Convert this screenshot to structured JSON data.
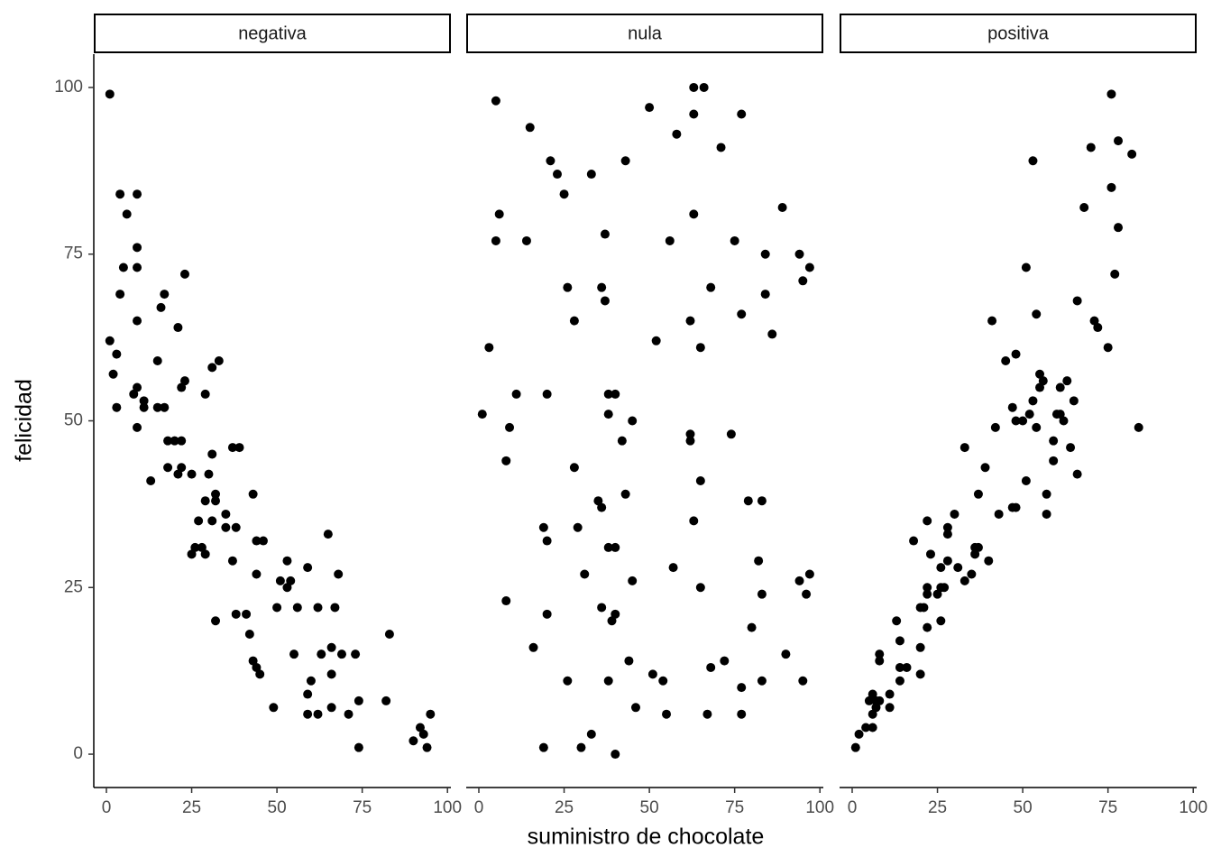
{
  "chart_data": {
    "type": "scatter",
    "xlabel": "suministro de chocolate",
    "ylabel": "felicidad",
    "xlim": [
      -3.7,
      101
    ],
    "ylim": [
      -5,
      105
    ],
    "xticks": [
      0,
      25,
      50,
      75,
      100
    ],
    "yticks": [
      0,
      25,
      50,
      75,
      100
    ],
    "series": [
      {
        "name": "negativa",
        "color": "#000000",
        "x": [
          1,
          1,
          2,
          3,
          3,
          4,
          6,
          5,
          4,
          9,
          9,
          9,
          9,
          9,
          8,
          9,
          11,
          11,
          13,
          15,
          16,
          17,
          15,
          17,
          18,
          18,
          20,
          22,
          21,
          23,
          23,
          22,
          21,
          22,
          25,
          29,
          30,
          31,
          33,
          31,
          32,
          32,
          29,
          27,
          31,
          35,
          35,
          38,
          37,
          39,
          26,
          28,
          25,
          29,
          37,
          43,
          44,
          46,
          44,
          32,
          38,
          41,
          42,
          43,
          44,
          45,
          49,
          51,
          53,
          54,
          53,
          50,
          56,
          55,
          59,
          65,
          62,
          67,
          68,
          63,
          66,
          69,
          73,
          66,
          60,
          59,
          59,
          62,
          66,
          71,
          74,
          74,
          82,
          83,
          92,
          93,
          90,
          94,
          95
        ],
        "values": [
          99,
          62,
          57,
          60,
          52,
          84,
          81,
          73,
          69,
          84,
          76,
          73,
          65,
          55,
          54,
          49,
          53,
          52,
          41,
          59,
          67,
          69,
          52,
          52,
          47,
          43,
          47,
          47,
          64,
          72,
          56,
          55,
          42,
          43,
          42,
          54,
          42,
          58,
          59,
          45,
          39,
          38,
          38,
          35,
          35,
          36,
          34,
          34,
          46,
          46,
          31,
          31,
          30,
          30,
          29,
          39,
          32,
          32,
          27,
          20,
          21,
          21,
          18,
          14,
          13,
          12,
          7,
          26,
          29,
          26,
          25,
          22,
          22,
          15,
          28,
          33,
          22,
          22,
          27,
          15,
          16,
          15,
          15,
          12,
          11,
          9,
          6,
          6,
          7,
          6,
          8,
          1,
          8,
          18,
          4,
          3,
          2,
          1,
          6
        ]
      },
      {
        "name": "nula",
        "color": "#000000",
        "x": [
          5,
          6,
          5,
          14,
          15,
          21,
          23,
          25,
          33,
          43,
          50,
          58,
          63,
          63,
          66,
          71,
          77,
          3,
          1,
          11,
          20,
          9,
          8,
          26,
          28,
          37,
          36,
          37,
          38,
          40,
          38,
          45,
          42,
          52,
          56,
          63,
          62,
          65,
          68,
          75,
          84,
          89,
          94,
          97,
          95,
          84,
          77,
          86,
          62,
          62,
          74,
          65,
          28,
          35,
          36,
          43,
          19,
          20,
          29,
          38,
          40,
          63,
          79,
          83,
          31,
          45,
          57,
          65,
          82,
          83,
          94,
          97,
          96,
          8,
          20,
          36,
          40,
          39,
          16,
          26,
          38,
          44,
          51,
          54,
          46,
          55,
          67,
          68,
          72,
          80,
          77,
          77,
          83,
          90,
          95,
          19,
          30,
          33,
          40
        ],
        "values": [
          98,
          81,
          77,
          77,
          94,
          89,
          87,
          84,
          87,
          89,
          97,
          93,
          96,
          100,
          100,
          91,
          96,
          61,
          51,
          54,
          54,
          49,
          44,
          70,
          65,
          78,
          70,
          68,
          54,
          54,
          51,
          50,
          47,
          62,
          77,
          81,
          65,
          61,
          70,
          77,
          75,
          82,
          75,
          73,
          71,
          69,
          66,
          63,
          48,
          47,
          48,
          41,
          43,
          38,
          37,
          39,
          34,
          32,
          34,
          31,
          31,
          35,
          38,
          38,
          27,
          26,
          28,
          25,
          29,
          24,
          26,
          27,
          24,
          23,
          21,
          22,
          21,
          20,
          16,
          11,
          11,
          14,
          12,
          11,
          7,
          6,
          6,
          13,
          14,
          19,
          10,
          6,
          11,
          15,
          11,
          1,
          1,
          3,
          0
        ]
      },
      {
        "name": "positiva",
        "color": "#000000",
        "x": [
          1,
          2,
          4,
          6,
          5,
          6,
          6,
          7,
          8,
          7,
          8,
          8,
          11,
          11,
          13,
          14,
          14,
          14,
          16,
          18,
          20,
          20,
          20,
          21,
          22,
          22,
          22,
          22,
          23,
          25,
          26,
          27,
          26,
          26,
          28,
          28,
          28,
          30,
          31,
          33,
          33,
          35,
          36,
          37,
          36,
          37,
          39,
          40,
          41,
          42,
          43,
          45,
          47,
          48,
          48,
          48,
          47,
          50,
          51,
          52,
          53,
          53,
          54,
          54,
          55,
          55,
          56,
          51,
          57,
          57,
          59,
          59,
          60,
          61,
          62,
          61,
          63,
          64,
          65,
          66,
          66,
          68,
          70,
          71,
          72,
          75,
          76,
          76,
          77,
          78,
          78,
          82,
          84
        ],
        "values": [
          1,
          3,
          4,
          4,
          8,
          9,
          6,
          7,
          8,
          8,
          15,
          14,
          9,
          7,
          20,
          17,
          13,
          11,
          13,
          32,
          16,
          12,
          22,
          22,
          35,
          25,
          24,
          19,
          30,
          24,
          25,
          25,
          20,
          28,
          34,
          33,
          29,
          36,
          28,
          46,
          26,
          27,
          31,
          31,
          30,
          39,
          43,
          29,
          65,
          49,
          36,
          59,
          52,
          60,
          50,
          37,
          37,
          50,
          73,
          51,
          53,
          89,
          66,
          49,
          57,
          55,
          56,
          41,
          39,
          36,
          47,
          44,
          51,
          55,
          50,
          51,
          56,
          46,
          53,
          42,
          68,
          82,
          91,
          65,
          64,
          61,
          99,
          85,
          72,
          92,
          79,
          90,
          49
        ]
      }
    ]
  }
}
